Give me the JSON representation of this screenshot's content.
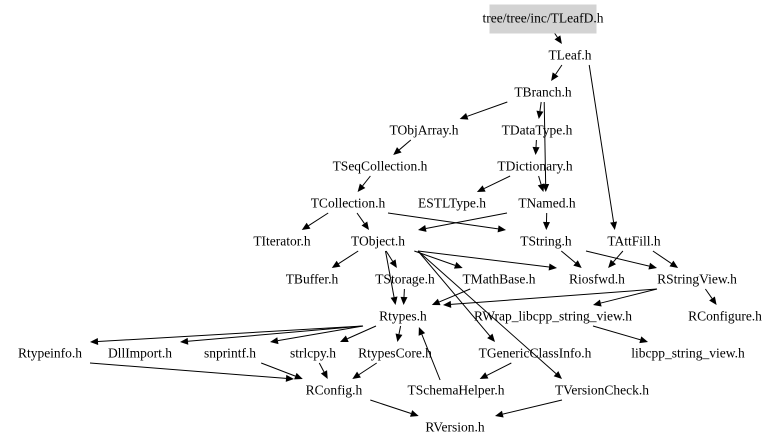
{
  "graph": {
    "root": "tree/tree/inc/TLeafD.h",
    "root_fill": "#d3d3d3",
    "nodes": [
      {
        "id": "TLeafD",
        "label": "tree/tree/inc/TLeafD.h"
      },
      {
        "id": "TLeaf",
        "label": "TLeaf.h"
      },
      {
        "id": "TBranch",
        "label": "TBranch.h"
      },
      {
        "id": "TObjArray",
        "label": "TObjArray.h"
      },
      {
        "id": "TDataType",
        "label": "TDataType.h"
      },
      {
        "id": "TSeqCollection",
        "label": "TSeqCollection.h"
      },
      {
        "id": "TDictionary",
        "label": "TDictionary.h"
      },
      {
        "id": "TCollection",
        "label": "TCollection.h"
      },
      {
        "id": "ESTLType",
        "label": "ESTLType.h"
      },
      {
        "id": "TNamed",
        "label": "TNamed.h"
      },
      {
        "id": "TIterator",
        "label": "TIterator.h"
      },
      {
        "id": "TObject",
        "label": "TObject.h"
      },
      {
        "id": "TString",
        "label": "TString.h"
      },
      {
        "id": "TAttFill",
        "label": "TAttFill.h"
      },
      {
        "id": "TBuffer",
        "label": "TBuffer.h"
      },
      {
        "id": "TStorage",
        "label": "TStorage.h"
      },
      {
        "id": "TMathBase",
        "label": "TMathBase.h"
      },
      {
        "id": "Riosfwd",
        "label": "Riosfwd.h"
      },
      {
        "id": "RStringView",
        "label": "RStringView.h"
      },
      {
        "id": "Rtypes",
        "label": "Rtypes.h"
      },
      {
        "id": "RWrap",
        "label": "RWrap_libcpp_string_view.h"
      },
      {
        "id": "RConfigure",
        "label": "RConfigure.h"
      },
      {
        "id": "Rtypeinfo",
        "label": "Rtypeinfo.h"
      },
      {
        "id": "DllImport",
        "label": "DllImport.h"
      },
      {
        "id": "snprintf",
        "label": "snprintf.h"
      },
      {
        "id": "strlcpy",
        "label": "strlcpy.h"
      },
      {
        "id": "RtypesCore",
        "label": "RtypesCore.h"
      },
      {
        "id": "TGenericClassInfo",
        "label": "TGenericClassInfo.h"
      },
      {
        "id": "libcpp",
        "label": "libcpp_string_view.h"
      },
      {
        "id": "RConfig",
        "label": "RConfig.h"
      },
      {
        "id": "TSchemaHelper",
        "label": "TSchemaHelper.h"
      },
      {
        "id": "TVersionCheck",
        "label": "TVersionCheck.h"
      },
      {
        "id": "RVersion",
        "label": "RVersion.h"
      }
    ],
    "edges": [
      [
        "TLeafD",
        "TLeaf"
      ],
      [
        "TLeaf",
        "TBranch"
      ],
      [
        "TLeaf",
        "TAttFill"
      ],
      [
        "TBranch",
        "TObjArray"
      ],
      [
        "TBranch",
        "TDataType"
      ],
      [
        "TBranch",
        "TNamed"
      ],
      [
        "TObjArray",
        "TSeqCollection"
      ],
      [
        "TDataType",
        "TDictionary"
      ],
      [
        "TSeqCollection",
        "TCollection"
      ],
      [
        "TDictionary",
        "ESTLType"
      ],
      [
        "TDictionary",
        "TNamed"
      ],
      [
        "TCollection",
        "TIterator"
      ],
      [
        "TCollection",
        "TObject"
      ],
      [
        "TCollection",
        "TString"
      ],
      [
        "TNamed",
        "TObject"
      ],
      [
        "TNamed",
        "TString"
      ],
      [
        "TAttFill",
        "Riosfwd"
      ],
      [
        "TAttFill",
        "RStringView"
      ],
      [
        "TString",
        "Riosfwd"
      ],
      [
        "TString",
        "RStringView"
      ],
      [
        "TObject",
        "TBuffer"
      ],
      [
        "TObject",
        "TStorage"
      ],
      [
        "TObject",
        "TMathBase"
      ],
      [
        "TObject",
        "Riosfwd"
      ],
      [
        "TObject",
        "Rtypes"
      ],
      [
        "TObject",
        "TGenericClassInfo"
      ],
      [
        "TObject",
        "TVersionCheck"
      ],
      [
        "TStorage",
        "Rtypes"
      ],
      [
        "TMathBase",
        "Rtypes"
      ],
      [
        "RStringView",
        "Rtypes"
      ],
      [
        "RStringView",
        "RConfigure"
      ],
      [
        "RStringView",
        "RWrap"
      ],
      [
        "RWrap",
        "libcpp"
      ],
      [
        "Rtypes",
        "Rtypeinfo"
      ],
      [
        "Rtypes",
        "DllImport"
      ],
      [
        "Rtypes",
        "snprintf"
      ],
      [
        "Rtypes",
        "strlcpy"
      ],
      [
        "Rtypes",
        "RtypesCore"
      ],
      [
        "TGenericClassInfo",
        "TSchemaHelper"
      ],
      [
        "TSchemaHelper",
        "Rtypes"
      ],
      [
        "Rtypeinfo",
        "RConfig"
      ],
      [
        "snprintf",
        "RConfig"
      ],
      [
        "strlcpy",
        "RConfig"
      ],
      [
        "RtypesCore",
        "RConfig"
      ],
      [
        "RConfig",
        "RVersion"
      ],
      [
        "TVersionCheck",
        "RVersion"
      ]
    ]
  }
}
